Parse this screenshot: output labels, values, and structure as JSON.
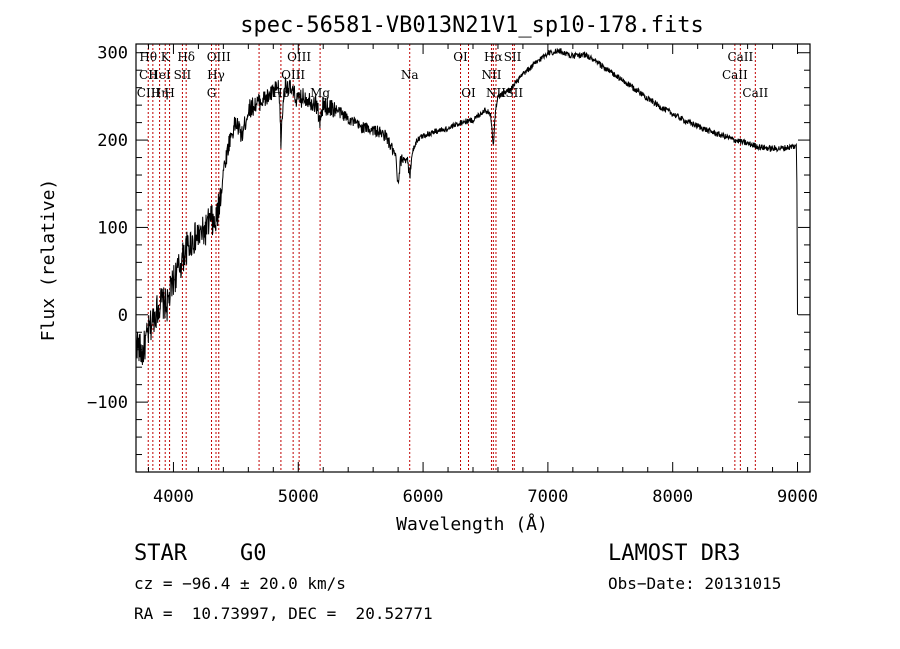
{
  "chart_data": {
    "type": "line",
    "title": "spec-56581-VB013N21V1_sp10-178.fits",
    "xlabel": "Wavelength (Å)",
    "ylabel": "Flux (relative)",
    "xlim": [
      3700,
      9100
    ],
    "ylim": [
      -180,
      310
    ],
    "x_ticks": [
      4000,
      5000,
      6000,
      7000,
      8000,
      9000
    ],
    "x_tick_labels": [
      "4000",
      "5000",
      "6000",
      "7000",
      "8000",
      "9000"
    ],
    "y_ticks": [
      -100,
      0,
      100,
      200,
      300
    ],
    "y_tick_labels": [
      "−100",
      "0",
      "100",
      "200",
      "300"
    ],
    "series": [
      {
        "name": "flux",
        "color": "#000000",
        "anchors": [
          [
            3700,
            -30
          ],
          [
            3750,
            -45
          ],
          [
            3800,
            -20
          ],
          [
            3850,
            0
          ],
          [
            3900,
            15
          ],
          [
            3950,
            10
          ],
          [
            4000,
            40
          ],
          [
            4050,
            55
          ],
          [
            4100,
            75
          ],
          [
            4150,
            85
          ],
          [
            4200,
            90
          ],
          [
            4250,
            95
          ],
          [
            4300,
            110
          ],
          [
            4330,
            100
          ],
          [
            4360,
            120
          ],
          [
            4400,
            165
          ],
          [
            4450,
            200
          ],
          [
            4500,
            220
          ],
          [
            4550,
            205
          ],
          [
            4600,
            235
          ],
          [
            4650,
            240
          ],
          [
            4700,
            245
          ],
          [
            4750,
            248
          ],
          [
            4800,
            255
          ],
          [
            4850,
            260
          ],
          [
            4861,
            230
          ],
          [
            4900,
            265
          ],
          [
            4950,
            255
          ],
          [
            5000,
            245
          ],
          [
            5050,
            250
          ],
          [
            5100,
            245
          ],
          [
            5150,
            240
          ],
          [
            5170,
            230
          ],
          [
            5200,
            240
          ],
          [
            5300,
            235
          ],
          [
            5400,
            225
          ],
          [
            5500,
            215
          ],
          [
            5600,
            212
          ],
          [
            5700,
            205
          ],
          [
            5750,
            190
          ],
          [
            5800,
            175
          ],
          [
            5850,
            180
          ],
          [
            5893,
            178
          ],
          [
            5950,
            200
          ],
          [
            6000,
            205
          ],
          [
            6100,
            210
          ],
          [
            6200,
            213
          ],
          [
            6300,
            220
          ],
          [
            6400,
            223
          ],
          [
            6500,
            235
          ],
          [
            6563,
            225
          ],
          [
            6600,
            250
          ],
          [
            6700,
            258
          ],
          [
            6800,
            275
          ],
          [
            6900,
            288
          ],
          [
            7000,
            300
          ],
          [
            7100,
            302
          ],
          [
            7200,
            296
          ],
          [
            7300,
            298
          ],
          [
            7400,
            288
          ],
          [
            7500,
            278
          ],
          [
            7600,
            268
          ],
          [
            7700,
            258
          ],
          [
            7800,
            248
          ],
          [
            7900,
            238
          ],
          [
            8000,
            230
          ],
          [
            8100,
            222
          ],
          [
            8200,
            216
          ],
          [
            8300,
            210
          ],
          [
            8400,
            205
          ],
          [
            8500,
            200
          ],
          [
            8600,
            196
          ],
          [
            8700,
            192
          ],
          [
            8800,
            190
          ],
          [
            8900,
            191
          ],
          [
            8980,
            193
          ]
        ],
        "features": [
          {
            "wavelength": 4861,
            "depth": 30
          },
          {
            "wavelength": 5175,
            "depth": 12
          },
          {
            "wavelength": 5800,
            "depth": 28
          },
          {
            "wavelength": 5893,
            "depth": 20
          },
          {
            "wavelength": 6563,
            "depth": 28
          }
        ],
        "tail": [
          [
            8990,
            195
          ],
          [
            8995,
            150
          ],
          [
            9000,
            0
          ]
        ]
      }
    ],
    "line_markers": [
      {
        "label": "Hθ",
        "wavelength": 3798,
        "row": 0
      },
      {
        "label": "CII",
        "wavelength": 3799,
        "row": 1
      },
      {
        "label": "CIII",
        "wavelength": 3800,
        "row": 2
      },
      {
        "label": "HeI",
        "wavelength": 3889,
        "row": 1
      },
      {
        "label": "Hη",
        "wavelength": 3889,
        "row": 2
      },
      {
        "label": "K",
        "wavelength": 3934,
        "row": 0
      },
      {
        "label": "H",
        "wavelength": 3969,
        "row": 2
      },
      {
        "label": "SII",
        "wavelength": 4072,
        "row": 1
      },
      {
        "label": "Hδ",
        "wavelength": 4102,
        "row": 0
      },
      {
        "label": "OIII",
        "wavelength": 4363,
        "row": 0
      },
      {
        "label": "Hγ",
        "wavelength": 4341,
        "row": 1
      },
      {
        "label": "G",
        "wavelength": 4305,
        "row": 2
      },
      {
        "label": "Hβ",
        "wavelength": 4861,
        "row": 2
      },
      {
        "label": "OIII",
        "wavelength": 4959,
        "row": 1
      },
      {
        "label": "OIII",
        "wavelength": 5007,
        "row": 0
      },
      {
        "label": "Mg",
        "wavelength": 5175,
        "row": 2
      },
      {
        "label": "Na",
        "wavelength": 5893,
        "row": 1
      },
      {
        "label": "OI",
        "wavelength": 6300,
        "row": 0
      },
      {
        "label": "OI",
        "wavelength": 6364,
        "row": 2
      },
      {
        "label": "NII",
        "wavelength": 6548,
        "row": 1
      },
      {
        "label": "Hα",
        "wavelength": 6563,
        "row": 0
      },
      {
        "label": "NII",
        "wavelength": 6584,
        "row": 2
      },
      {
        "label": "SII",
        "wavelength": 6717,
        "row": 0
      },
      {
        "label": "SII",
        "wavelength": 6731,
        "row": 2
      },
      {
        "label": "CaII",
        "wavelength": 8498,
        "row": 1
      },
      {
        "label": "CaII",
        "wavelength": 8542,
        "row": 0
      },
      {
        "label": "CaII",
        "wavelength": 8662,
        "row": 2
      }
    ],
    "marker_extra_lines": [
      3835,
      4686,
      6717
    ]
  },
  "info": {
    "object_class": "STAR",
    "subclass": "G0",
    "survey": "LAMOST DR3",
    "redshift": "cz = −96.4 ± 20.0 km/s",
    "obs_date": "Obs−Date: 20131015",
    "coords": "RA =  10.73997, DEC =  20.52771"
  },
  "colors": {
    "axis": "#000000",
    "spectrum": "#000000",
    "line_marker": "#c00000",
    "background": "#ffffff"
  }
}
